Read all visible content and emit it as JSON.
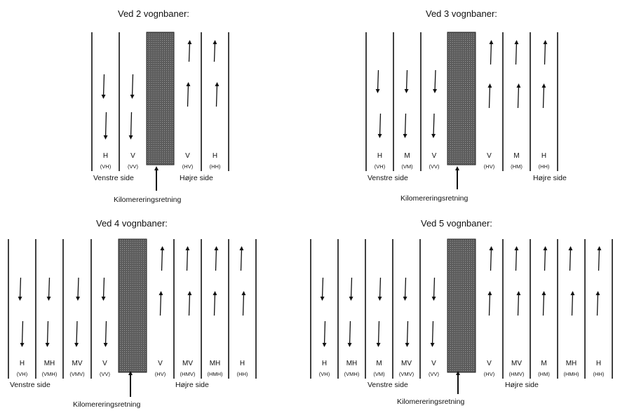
{
  "diagrams": [
    {
      "title": "Ved 2 vognbaner:",
      "left_lanes": [
        {
          "label": "H",
          "code": "(VH)"
        },
        {
          "label": "V",
          "code": "(VV)"
        }
      ],
      "right_lanes": [
        {
          "label": "V",
          "code": "(HV)"
        },
        {
          "label": "H",
          "code": "(HH)"
        }
      ],
      "left_side": "Venstre side",
      "right_side": "Højre side",
      "direction_label": "Kilomereringsretning"
    },
    {
      "title": "Ved 3 vognbaner:",
      "left_lanes": [
        {
          "label": "H",
          "code": "(VH)"
        },
        {
          "label": "M",
          "code": "(VM)"
        },
        {
          "label": "V",
          "code": "(VV)"
        }
      ],
      "right_lanes": [
        {
          "label": "V",
          "code": "(HV)"
        },
        {
          "label": "M",
          "code": "(HM)"
        },
        {
          "label": "H",
          "code": "(HH)"
        }
      ],
      "left_side": "Venstre side",
      "right_side": "Højre side",
      "direction_label": "Kilomereringsretning"
    },
    {
      "title": "Ved 4 vognbaner:",
      "left_lanes": [
        {
          "label": "H",
          "code": "(VH)"
        },
        {
          "label": "MH",
          "code": "(VMH)"
        },
        {
          "label": "MV",
          "code": "(VMV)"
        },
        {
          "label": "V",
          "code": "(VV)"
        }
      ],
      "right_lanes": [
        {
          "label": "V",
          "code": "(HV)"
        },
        {
          "label": "MV",
          "code": "(HMV)"
        },
        {
          "label": "MH",
          "code": "(HMH)"
        },
        {
          "label": "H",
          "code": "(HH)"
        }
      ],
      "left_side": "Venstre side",
      "right_side": "Højre side",
      "direction_label": "Kilomereringsretning"
    },
    {
      "title": "Ved 5 vognbaner:",
      "left_lanes": [
        {
          "label": "H",
          "code": "(VH)"
        },
        {
          "label": "MH",
          "code": "(VMH)"
        },
        {
          "label": "M",
          "code": "(VM)"
        },
        {
          "label": "MV",
          "code": "(VMV)"
        },
        {
          "label": "V",
          "code": "(VV)"
        }
      ],
      "right_lanes": [
        {
          "label": "V",
          "code": "(HV)"
        },
        {
          "label": "MV",
          "code": "(HMV)"
        },
        {
          "label": "M",
          "code": "(HM)"
        },
        {
          "label": "MH",
          "code": "(HMH)"
        },
        {
          "label": "H",
          "code": "(HH)"
        }
      ],
      "left_side": "Venstre side",
      "right_side": "Højre side",
      "direction_label": "Kilomereringsretning"
    }
  ],
  "colors": {
    "line": "#111111",
    "median": "#5a5a5a"
  }
}
